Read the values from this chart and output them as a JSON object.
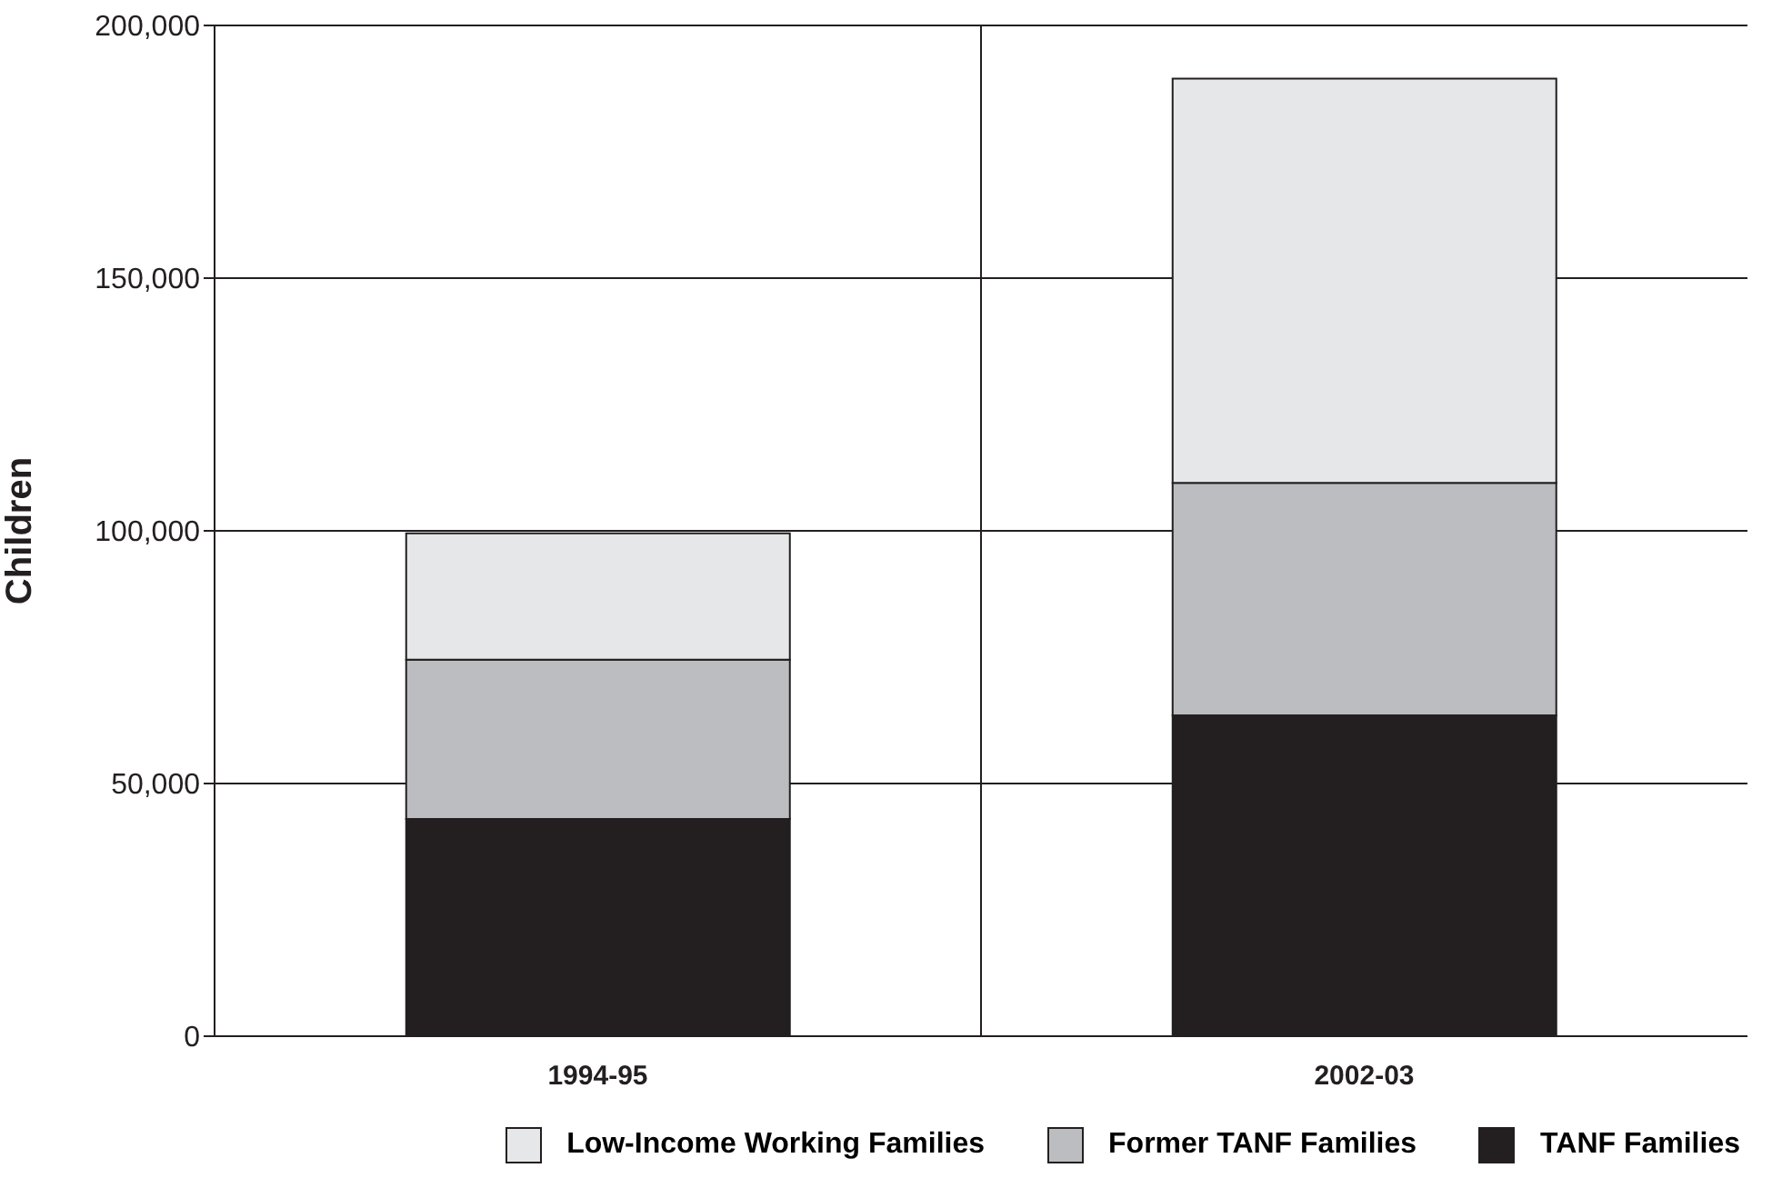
{
  "chart_data": {
    "type": "bar",
    "stacked": true,
    "ylabel": "Children",
    "categories": [
      "1994-95",
      "2002-03"
    ],
    "series": [
      {
        "name": "TANF Families",
        "color": "#231f20",
        "values": [
          43000,
          63500
        ]
      },
      {
        "name": "Former TANF Families",
        "color": "#bcbdc1",
        "values": [
          31500,
          46000
        ]
      },
      {
        "name": "Low-Income Working Families",
        "color": "#e6e7e9",
        "values": [
          25000,
          80000
        ]
      }
    ],
    "ylim": [
      0,
      200000
    ],
    "yticks": [
      {
        "value": 0,
        "label": "0"
      },
      {
        "value": 50000,
        "label": "50,000"
      },
      {
        "value": 100000,
        "label": "100,000"
      },
      {
        "value": 150000,
        "label": "150,000"
      },
      {
        "value": 200000,
        "label": "200,000"
      }
    ],
    "grid": true,
    "legend": "bottom"
  }
}
